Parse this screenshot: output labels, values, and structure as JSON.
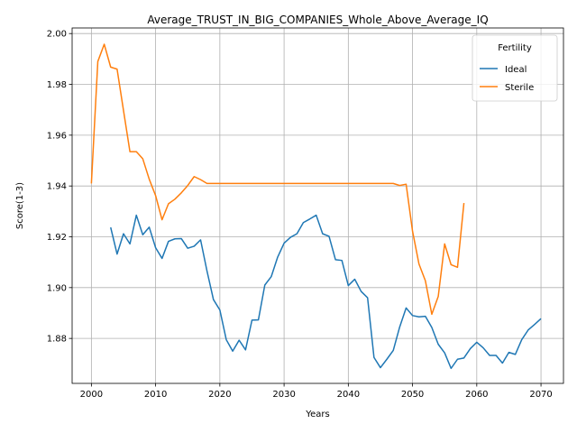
{
  "chart_data": {
    "type": "line",
    "title": "Average_TRUST_IN_BIG_COMPANIES_Whole_Above_Average_IQ",
    "xlabel": "Years",
    "ylabel": "Score(1-3)",
    "xlim": [
      1997,
      2073.5
    ],
    "ylim": [
      1.8623,
      2.0022
    ],
    "xticks": [
      2000,
      2010,
      2020,
      2030,
      2040,
      2050,
      2060,
      2070
    ],
    "yticks": [
      1.88,
      1.9,
      1.92,
      1.94,
      1.96,
      1.98,
      2.0
    ],
    "grid": true,
    "legend": {
      "title": "Fertility",
      "placement": "top-right"
    },
    "series": [
      {
        "name": "Ideal",
        "color": "#1f77b4",
        "x": [
          2003,
          2004,
          2005,
          2006,
          2007,
          2008,
          2009,
          2010,
          2011,
          2012,
          2013,
          2014,
          2015,
          2016,
          2017,
          2018,
          2019,
          2020,
          2021,
          2022,
          2023,
          2024,
          2025,
          2026,
          2027,
          2028,
          2029,
          2030,
          2031,
          2032,
          2033,
          2034,
          2035,
          2036,
          2037,
          2038,
          2039,
          2040,
          2041,
          2042,
          2043,
          2044,
          2045,
          2046,
          2047,
          2048,
          2049,
          2050,
          2051,
          2052,
          2053,
          2054,
          2055,
          2056,
          2057,
          2058,
          2059,
          2060,
          2061,
          2062,
          2063,
          2064,
          2065,
          2066,
          2067,
          2068,
          2069,
          2070
        ],
        "y": [
          1.9237,
          1.9132,
          1.9212,
          1.9172,
          1.9285,
          1.9208,
          1.9238,
          1.9157,
          1.9115,
          1.9182,
          1.9192,
          1.9193,
          1.9155,
          1.9163,
          1.9188,
          1.9065,
          1.8953,
          1.8912,
          1.8795,
          1.875,
          1.8793,
          1.8755,
          1.8872,
          1.8873,
          1.901,
          1.9043,
          1.912,
          1.9175,
          1.9198,
          1.9212,
          1.9256,
          1.927,
          1.9285,
          1.9212,
          1.9202,
          1.911,
          1.9107,
          1.9008,
          1.9033,
          1.8985,
          1.896,
          1.8725,
          1.8685,
          1.8718,
          1.8753,
          1.8845,
          1.892,
          1.889,
          1.8885,
          1.8887,
          1.8843,
          1.8777,
          1.8743,
          1.8682,
          1.8718,
          1.8723,
          1.876,
          1.8785,
          1.8763,
          1.8733,
          1.8733,
          1.8703,
          1.8745,
          1.8737,
          1.8795,
          1.8833,
          1.8855,
          1.8878
        ]
      },
      {
        "name": "Sterile",
        "color": "#ff7f0e",
        "x": [
          2000,
          2001,
          2002,
          2003,
          2004,
          2005,
          2006,
          2007,
          2008,
          2009,
          2010,
          2011,
          2012,
          2013,
          2014,
          2015,
          2016,
          2017,
          2018,
          2019,
          2020,
          2021,
          2022,
          2023,
          2024,
          2025,
          2026,
          2027,
          2028,
          2029,
          2030,
          2031,
          2032,
          2033,
          2034,
          2035,
          2036,
          2037,
          2038,
          2039,
          2040,
          2041,
          2042,
          2043,
          2044,
          2045,
          2046,
          2047,
          2048,
          2049,
          2050,
          2051,
          2052,
          2053,
          2054,
          2055,
          2056,
          2057,
          2058
        ],
        "y": [
          1.941,
          1.989,
          1.9958,
          1.9868,
          1.986,
          1.9697,
          1.9535,
          1.9535,
          1.9507,
          1.9427,
          1.9362,
          1.9267,
          1.933,
          1.9348,
          1.9373,
          1.9402,
          1.9437,
          1.9425,
          1.941,
          1.941,
          1.941,
          1.941,
          1.941,
          1.941,
          1.941,
          1.941,
          1.941,
          1.941,
          1.941,
          1.941,
          1.941,
          1.941,
          1.941,
          1.941,
          1.941,
          1.941,
          1.941,
          1.941,
          1.941,
          1.941,
          1.941,
          1.941,
          1.941,
          1.941,
          1.941,
          1.941,
          1.941,
          1.941,
          1.9402,
          1.9407,
          1.9222,
          1.9093,
          1.9027,
          1.8895,
          1.8965,
          1.9172,
          1.909,
          1.908,
          1.9333
        ]
      }
    ]
  }
}
